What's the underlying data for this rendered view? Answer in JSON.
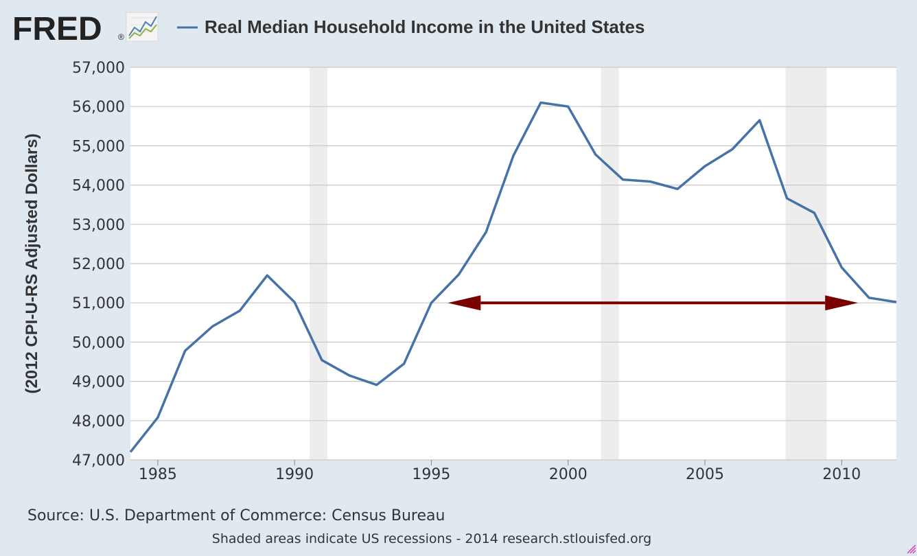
{
  "header": {
    "logo_text": "FRED",
    "logo_mark": "®",
    "logo_icon": "line-chart-icon"
  },
  "chart_data": {
    "type": "line",
    "title": "Real Median Household Income in the United States",
    "ylabel": "(2012 CPI-U-RS Adjusted Dollars)",
    "xlabel": "",
    "xlim": [
      1984,
      2012
    ],
    "ylim": [
      47000,
      57000
    ],
    "grid": true,
    "y_ticks": [
      47000,
      48000,
      49000,
      50000,
      51000,
      52000,
      53000,
      54000,
      55000,
      56000,
      57000
    ],
    "y_tick_labels": [
      "47,000",
      "48,000",
      "49,000",
      "50,000",
      "51,000",
      "52,000",
      "53,000",
      "54,000",
      "55,000",
      "56,000",
      "57,000"
    ],
    "x_ticks": [
      1985,
      1990,
      1995,
      2000,
      2005,
      2010
    ],
    "x_tick_labels": [
      "1985",
      "1990",
      "1995",
      "2000",
      "2005",
      "2010"
    ],
    "series": [
      {
        "name": "Real Median Household Income in the United States",
        "color": "#4572a7",
        "x": [
          1984,
          1985,
          1986,
          1987,
          1988,
          1989,
          1990,
          1991,
          1992,
          1993,
          1994,
          1995,
          1996,
          1997,
          1998,
          1999,
          2000,
          2001,
          2002,
          2003,
          2004,
          2005,
          2006,
          2007,
          2008,
          2009,
          2010,
          2011,
          2012
        ],
        "values": [
          47200,
          48080,
          49780,
          50400,
          50800,
          51700,
          51020,
          49540,
          49150,
          48910,
          49450,
          51000,
          51720,
          52800,
          54750,
          56100,
          56000,
          54780,
          54140,
          54090,
          53900,
          54480,
          54910,
          55650,
          53660,
          53290,
          51900,
          51130,
          51020
        ]
      }
    ],
    "recessions": [
      {
        "start": 1990.55,
        "end": 1991.2
      },
      {
        "start": 2001.2,
        "end": 2001.85
      },
      {
        "start": 2007.95,
        "end": 2009.45
      }
    ],
    "recession_color": "#ededed",
    "annotation_arrow": {
      "x_start": 1995.6,
      "x_end": 2010.6,
      "y": 51000,
      "color": "#7a0000"
    }
  },
  "footer": {
    "source": "Source: U.S. Department of Commerce: Census Bureau",
    "note": "Shaded areas indicate US recessions - 2014 research.stlouisfed.org"
  }
}
